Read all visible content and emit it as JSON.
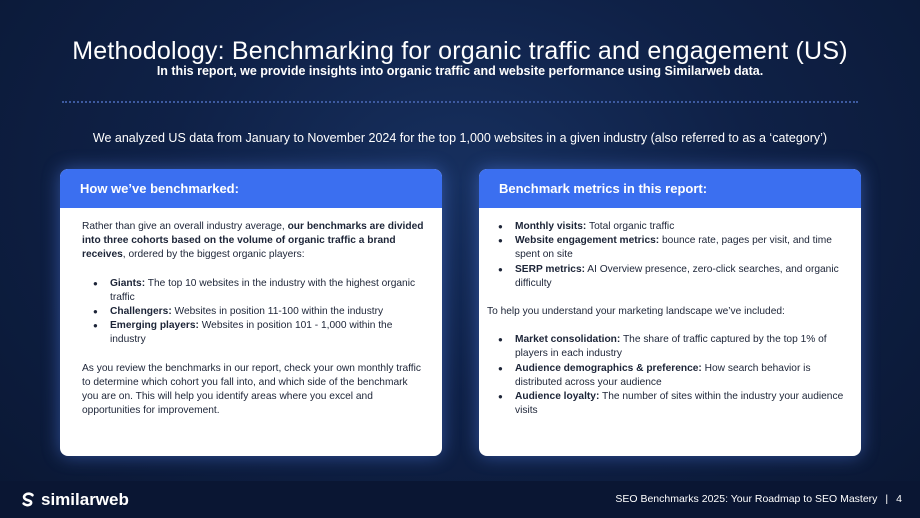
{
  "header": {
    "title": "Methodology: Benchmarking for organic traffic and engagement (US)",
    "subtitle": "In this report, we provide insights into organic traffic and website performance using Similarweb data.",
    "intro": "We analyzed US data from January to November 2024 for the top 1,000 websites in a given industry (also referred to as a ‘category’)"
  },
  "left_card": {
    "heading": "How we’ve benchmarked:",
    "intro_prefix": "Rather than give an overall industry average, ",
    "intro_bold": "our benchmarks are divided into three cohorts based on the volume of organic traffic a brand receives",
    "intro_suffix": ", ordered by the biggest organic players:",
    "cohorts": [
      {
        "term": "Giants:",
        "text": " The top 10 websites in the industry with the highest organic traffic"
      },
      {
        "term": "Challengers:",
        "text": " Websites in position 11-100 within the industry"
      },
      {
        "term": "Emerging players:",
        "text": " Websites in position 101 - 1,000 within the industry"
      }
    ],
    "closing": "As you review the benchmarks in our report, check your own monthly traffic to determine which cohort you fall into, and which side of the benchmark you are on. This will help you identify areas where you excel and opportunities for improvement."
  },
  "right_card": {
    "heading": "Benchmark metrics in this report:",
    "metrics": [
      {
        "term": "Monthly visits:",
        "text": " Total organic traffic"
      },
      {
        "term": "Website engagement metrics:",
        "text": " bounce rate, pages per visit, and time spent on site"
      },
      {
        "term": "SERP metrics:",
        "text": " AI Overview presence, zero-click searches, and organic difficulty"
      }
    ],
    "middle": "To help you understand your marketing landscape we’ve included:",
    "extras": [
      {
        "term": "Market consolidation:",
        "text": " The share of traffic captured by the top 1% of players in each industry"
      },
      {
        "term": "Audience demographics & preference:",
        "text": " How search behavior is distributed across your audience"
      },
      {
        "term": "Audience loyalty:",
        "text": " The number of sites within the industry your audience visits"
      }
    ]
  },
  "footer": {
    "brand": "similarweb",
    "report_title": "SEO Benchmarks 2025: Your Roadmap to SEO Mastery",
    "separator": "|",
    "page_number": "4",
    "logo_icon": "similarweb-logo-icon"
  },
  "colors": {
    "background": "#0f2147",
    "card_header": "#3b6ff0",
    "footer": "#0a1633"
  }
}
